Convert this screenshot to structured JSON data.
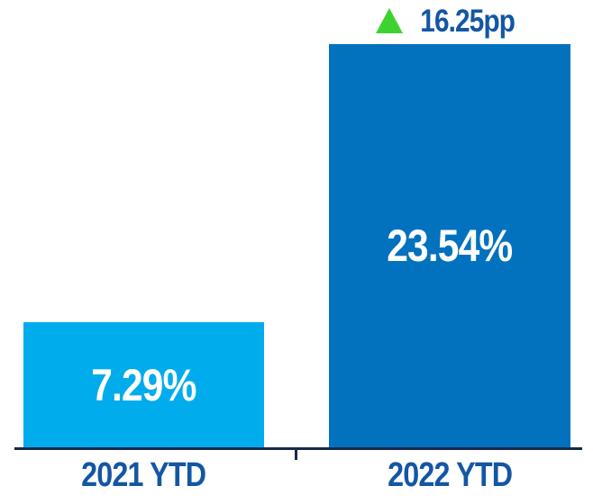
{
  "chart_data": {
    "type": "bar",
    "title": "",
    "xlabel": "",
    "ylabel": "",
    "categories": [
      "2021 YTD",
      "2022 YTD"
    ],
    "values": [
      7.29,
      23.54
    ],
    "value_labels": [
      "7.29%",
      "23.54%"
    ],
    "ylim": [
      0,
      25
    ],
    "grid": false,
    "legend": null,
    "bar_colors": [
      "#00ACEC",
      "#0272BE"
    ],
    "annotation": {
      "icon": "up-triangle-icon",
      "icon_color": "#3ED231",
      "text": "16.25pp",
      "applies_to": "2022 YTD"
    }
  },
  "styles": {
    "label_text_color": "#1456A4",
    "axis_color": "#16294E",
    "value_text_color": "#FFFFFF",
    "background_color": "#FFFFFF"
  }
}
